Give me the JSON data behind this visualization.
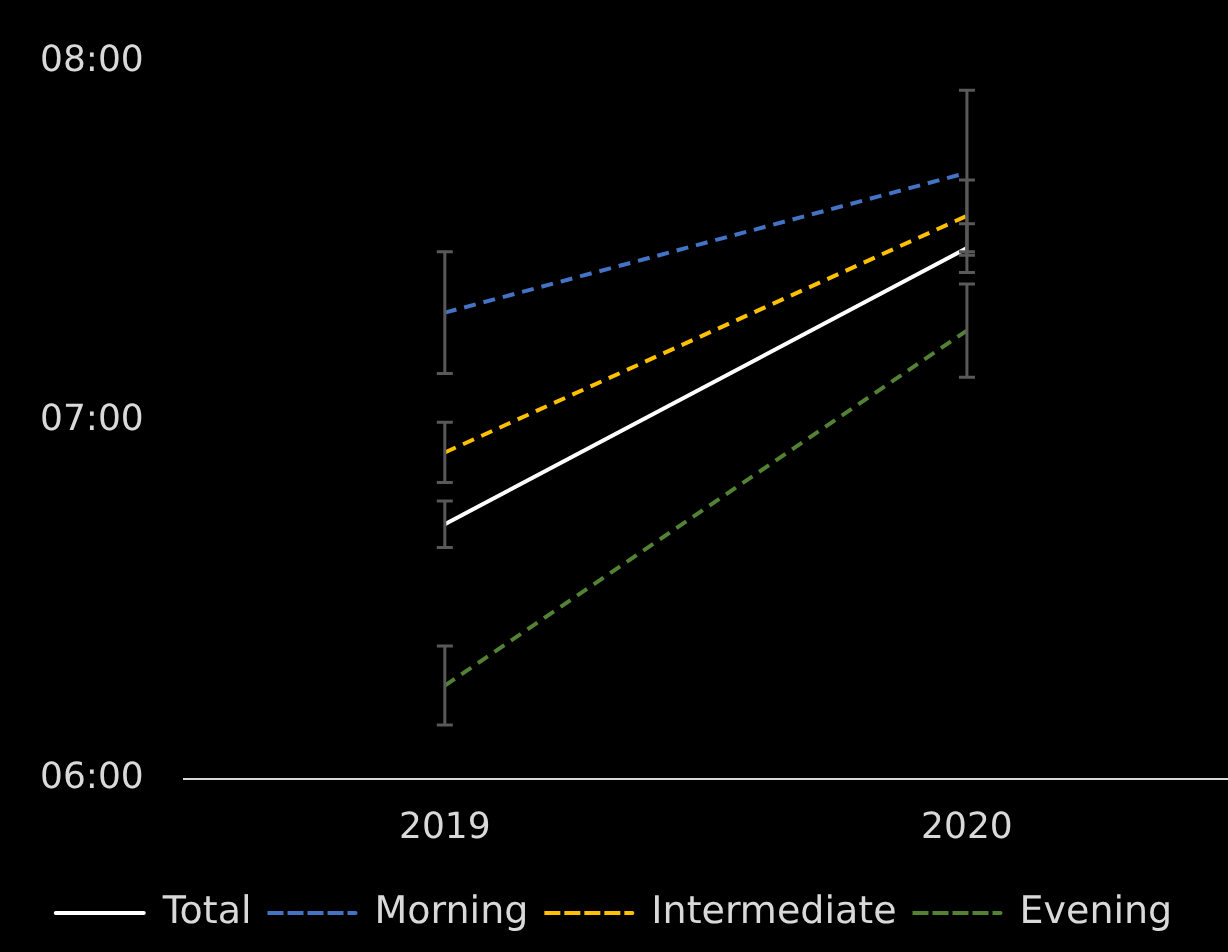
{
  "chart_data": {
    "type": "line",
    "categories": [
      "2019",
      "2020"
    ],
    "series": [
      {
        "name": "Total",
        "color": "#ffffff",
        "line_style": "solid",
        "values": [
          6.71,
          7.48
        ],
        "errors": [
          0.065,
          0.068
        ]
      },
      {
        "name": "Morning",
        "color": "#4472c4",
        "line_style": "dashed",
        "values": [
          7.3,
          7.69
        ],
        "errors": [
          0.17,
          0.23
        ]
      },
      {
        "name": "Intermediate",
        "color": "#ffc000",
        "line_style": "dashed",
        "values": [
          6.91,
          7.57
        ],
        "errors": [
          0.084,
          0.1
        ]
      },
      {
        "name": "Evening",
        "color": "#548235",
        "line_style": "dashed",
        "values": [
          6.26,
          7.25
        ],
        "errors": [
          0.11,
          0.13
        ]
      }
    ],
    "ylim": [
      6,
      8
    ],
    "yticks": [
      {
        "value": 6,
        "label": "06:00"
      },
      {
        "value": 7,
        "label": "07:00"
      },
      {
        "value": 8,
        "label": "08:00"
      }
    ],
    "grid": false,
    "legend": "bottom",
    "marker": "none"
  }
}
